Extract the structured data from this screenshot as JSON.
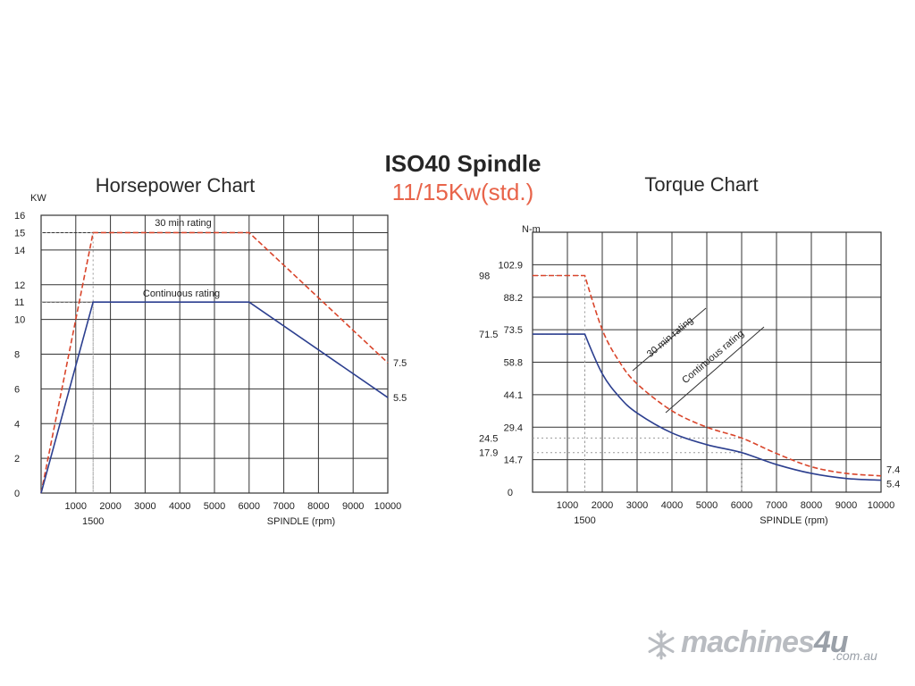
{
  "page": {
    "title": "ISO40 Spindle",
    "subtitle": "11/15Kw(std.)"
  },
  "brand": {
    "name_main": "machines",
    "name_accent": "4u",
    "domain": ".com.au",
    "icon": "snowflake-icon"
  },
  "chart_data": [
    {
      "type": "line",
      "title": "Horsepower Chart",
      "y_unit_label": "KW",
      "xlabel": "SPINDLE (rpm)",
      "xlim": [
        0,
        10000
      ],
      "ylim": [
        0,
        16
      ],
      "x_ticks": [
        "1000",
        "2000",
        "3000",
        "4000",
        "5000",
        "6000",
        "7000",
        "8000",
        "9000",
        "10000"
      ],
      "x_tick_values": [
        1000,
        2000,
        3000,
        4000,
        5000,
        6000,
        7000,
        8000,
        9000,
        10000
      ],
      "x_extra_label": {
        "value": 1500,
        "text": "1500"
      },
      "y_ticks": [
        "0",
        "2",
        "4",
        "6",
        "8",
        "10",
        "11",
        "12",
        "14",
        "15",
        "16"
      ],
      "y_tick_values": [
        0,
        2,
        4,
        6,
        8,
        10,
        11,
        12,
        14,
        15,
        16
      ],
      "grid": true,
      "guides": [
        {
          "x": 1500,
          "y": 15
        },
        {
          "x": 1500,
          "y": 11
        }
      ],
      "series": [
        {
          "name": "30 min rating",
          "style": "dashed",
          "color": "#d9452b",
          "x": [
            0,
            1500,
            6000,
            10000
          ],
          "y": [
            0,
            15,
            15,
            7.5
          ],
          "end_label": "7.5"
        },
        {
          "name": "Continuous rating",
          "style": "solid",
          "color": "#2c3f8f",
          "x": [
            0,
            1500,
            6000,
            10000
          ],
          "y": [
            0,
            11,
            11,
            5.5
          ],
          "end_label": "5.5"
        }
      ]
    },
    {
      "type": "line",
      "title": "Torque Chart",
      "y_unit_label": "N-m",
      "xlabel": "SPINDLE (rpm)",
      "xlim": [
        0,
        10000
      ],
      "ylim": [
        0,
        117.6
      ],
      "x_ticks": [
        "1000",
        "2000",
        "3000",
        "4000",
        "5000",
        "6000",
        "7000",
        "8000",
        "9000",
        "10000"
      ],
      "x_tick_values": [
        1000,
        2000,
        3000,
        4000,
        5000,
        6000,
        7000,
        8000,
        9000,
        10000
      ],
      "x_extra_label": {
        "value": 1500,
        "text": "1500"
      },
      "y_ticks": [
        "0",
        "14.7",
        "29.4",
        "44.1",
        "58.8",
        "73.5",
        "88.2",
        "102.9"
      ],
      "y_tick_values": [
        0,
        14.7,
        29.4,
        44.1,
        58.8,
        73.5,
        88.2,
        102.9
      ],
      "y_side_ticks": [
        "17.9",
        "24.5",
        "71.5",
        "98"
      ],
      "y_side_values": [
        17.9,
        24.5,
        71.5,
        98
      ],
      "grid": true,
      "guides": [
        {
          "x": 1500,
          "y": 98
        },
        {
          "x": 1500,
          "y": 71.5
        },
        {
          "x": 6000,
          "y": 24.5
        },
        {
          "x": 6000,
          "y": 17.9
        }
      ],
      "series": [
        {
          "name": "30 min rating",
          "style": "dashed",
          "color": "#d9452b",
          "x": [
            0,
            1500,
            2000,
            2500,
            3000,
            4000,
            5000,
            6000,
            7000,
            8000,
            9000,
            10000
          ],
          "y": [
            98,
            98,
            73.5,
            58.8,
            49,
            36.8,
            29.4,
            24.5,
            17.5,
            11.5,
            8.5,
            7.4
          ],
          "end_label": "7.4"
        },
        {
          "name": "Continuous rating",
          "style": "solid",
          "color": "#2c3f8f",
          "x": [
            0,
            1500,
            2000,
            2500,
            3000,
            4000,
            5000,
            6000,
            7000,
            8000,
            9000,
            10000
          ],
          "y": [
            71.5,
            71.5,
            53.6,
            42.9,
            35.8,
            26.8,
            21.5,
            17.9,
            12.5,
            8.5,
            6.2,
            5.4
          ],
          "end_label": "5.4"
        }
      ]
    }
  ]
}
